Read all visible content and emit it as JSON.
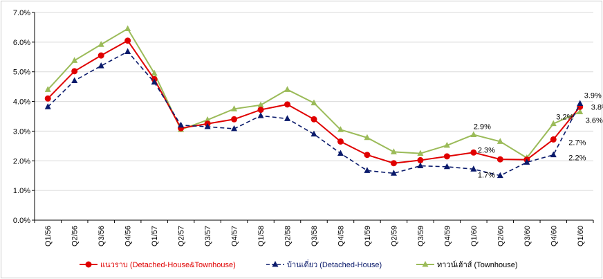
{
  "chart_data": {
    "type": "line",
    "title": "",
    "xlabel": "",
    "ylabel": "",
    "categories": [
      "Q1/56",
      "Q2/56",
      "Q3/56",
      "Q4/56",
      "Q1/57",
      "Q2/57",
      "Q3/57",
      "Q4/57",
      "Q1/58",
      "Q2/58",
      "Q3/58",
      "Q4/58",
      "Q1/59",
      "Q2/59",
      "Q3/59",
      "Q4/59",
      "Q1/60",
      "Q2/60",
      "Q3/60",
      "Q4/60",
      "Q1/60"
    ],
    "y_ticks": [
      "0.0%",
      "1.0%",
      "2.0%",
      "3.0%",
      "4.0%",
      "5.0%",
      "6.0%",
      "7.0%"
    ],
    "ylim": [
      0,
      7
    ],
    "grid": true,
    "legend_position": "bottom",
    "series": [
      {
        "name": "แนวราบ (Detached-House&Townhouse)",
        "color": "#e00000",
        "line_style": "solid",
        "marker": "circle",
        "values": [
          4.1,
          5.02,
          5.55,
          6.05,
          4.75,
          3.1,
          3.25,
          3.4,
          3.72,
          3.9,
          3.4,
          2.65,
          2.2,
          1.92,
          2.02,
          2.15,
          2.28,
          2.05,
          2.04,
          2.72,
          3.82
        ]
      },
      {
        "name": "บ้านเดี่ยว (Detached-House)",
        "color": "#0a1a6b",
        "line_style": "dashed",
        "marker": "triangle",
        "values": [
          3.82,
          4.7,
          5.2,
          5.68,
          4.65,
          3.2,
          3.15,
          3.08,
          3.52,
          3.42,
          2.9,
          2.25,
          1.67,
          1.58,
          1.83,
          1.8,
          1.72,
          1.5,
          1.95,
          2.2,
          3.93
        ]
      },
      {
        "name": "ทาวน์เฮ้าส์ (Townhouse)",
        "color": "#9bbb59",
        "line_style": "solid",
        "marker": "triangle",
        "values": [
          4.4,
          5.38,
          5.92,
          6.45,
          4.95,
          3.05,
          3.38,
          3.75,
          3.88,
          4.4,
          3.95,
          3.05,
          2.78,
          2.3,
          2.25,
          2.52,
          2.88,
          2.65,
          2.1,
          3.25,
          3.65
        ]
      }
    ],
    "annotations": [
      {
        "text": "2.9%",
        "category_index": 16,
        "value": 2.88
      },
      {
        "text": "2.3%",
        "category_index": 16,
        "value": 2.28
      },
      {
        "text": "1.7%",
        "category_index": 16,
        "value": 1.72
      },
      {
        "text": "3.2%",
        "category_index": 19,
        "value": 3.25
      },
      {
        "text": "2.7%",
        "category_index": 19,
        "value": 2.72
      },
      {
        "text": "2.2%",
        "category_index": 19,
        "value": 2.2
      },
      {
        "text": "3.9%",
        "category_index": 20,
        "value": 3.93
      },
      {
        "text": "3.8%",
        "category_index": 20,
        "value": 3.82
      },
      {
        "text": "3.6%",
        "category_index": 20,
        "value": 3.65
      }
    ]
  }
}
